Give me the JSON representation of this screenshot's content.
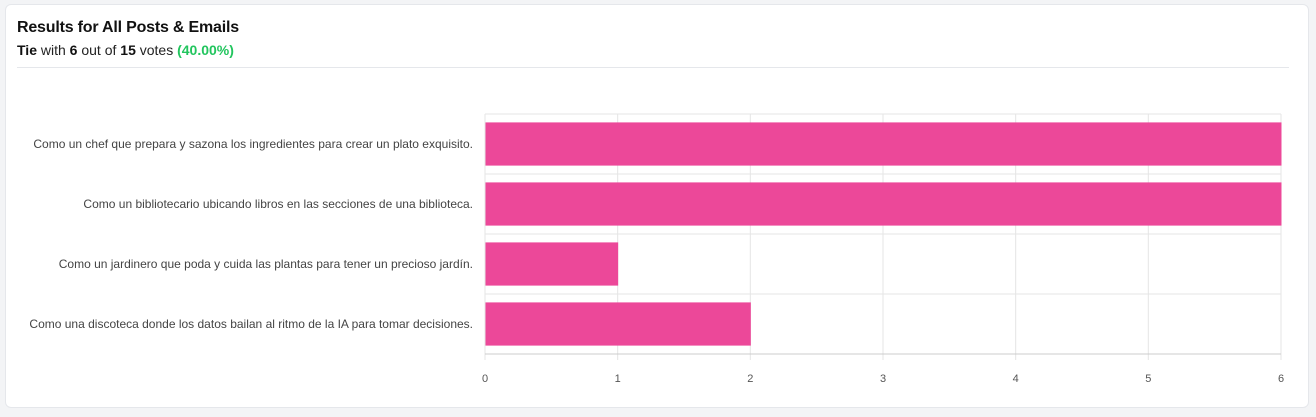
{
  "header": {
    "title": "Results for All Posts & Emails",
    "result_word": "Tie",
    "with_text": "with",
    "votes_count": "6",
    "out_of_text": "out of",
    "total_votes": "15",
    "votes_word": "votes",
    "percent": "(40.00%)"
  },
  "colors": {
    "bar": "#ec4899",
    "percent": "#22c55e"
  },
  "chart_data": {
    "type": "bar",
    "orientation": "horizontal",
    "categories": [
      "Como un chef que prepara y sazona los ingredientes para crear un plato exquisito.",
      "Como un bibliotecario ubicando libros en las secciones de una biblioteca.",
      "Como un jardinero que poda y cuida las plantas para tener un precioso jardín.",
      "Como una discoteca donde los datos bailan al ritmo de la IA para tomar decisiones."
    ],
    "values": [
      6,
      6,
      1,
      2
    ],
    "xlim": [
      0,
      6
    ],
    "xticks": [
      0,
      1,
      2,
      3,
      4,
      5,
      6
    ],
    "grid": true
  }
}
